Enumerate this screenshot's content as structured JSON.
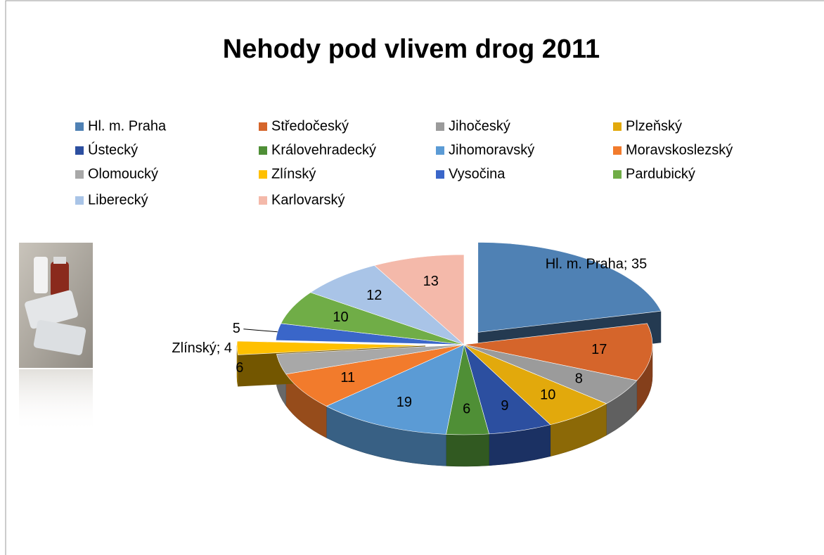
{
  "chart_data": {
    "type": "pie",
    "title": "Nehody pod vlivem drog 2011",
    "categories": [
      "Hl. m. Praha",
      "Středočeský",
      "Jihočeský",
      "Plzeňský",
      "Ústecký",
      "Královehradecký",
      "Jihomoravský",
      "Moravskoslezský",
      "Olomoucký",
      "Zlínský",
      "Vysočina",
      "Pardubický",
      "Liberecký",
      "Karlovarský"
    ],
    "values": [
      35,
      17,
      8,
      10,
      9,
      6,
      19,
      11,
      6,
      4,
      5,
      10,
      12,
      13
    ],
    "value_labels": [
      "Hl. m. Praha; 35",
      "17",
      "8",
      "10",
      "9",
      "6",
      "19",
      "11",
      "6",
      "Zlínský; 4",
      "5",
      "10",
      "12",
      "13"
    ],
    "colors": [
      "#4f81b4",
      "#d5652b",
      "#9b9b9b",
      "#e2a90c",
      "#2c4fa0",
      "#4f8f36",
      "#5b9bd5",
      "#f27b2c",
      "#a8a8a8",
      "#ffc000",
      "#3a66c9",
      "#70ad47",
      "#a9c4e7",
      "#f4b9aa"
    ],
    "legend": "top"
  }
}
